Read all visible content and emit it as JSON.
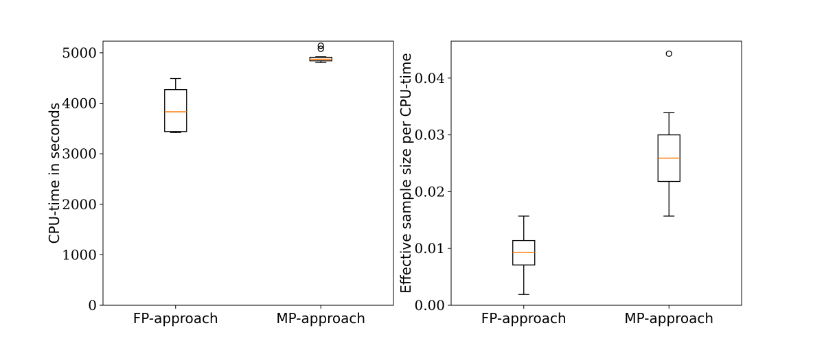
{
  "chart_data": [
    {
      "type": "box",
      "title": "",
      "xlabel": "",
      "ylabel": "CPU-time in seconds",
      "ylim": [
        0,
        5230
      ],
      "yticks": [
        0,
        1000,
        2000,
        3000,
        4000,
        5000
      ],
      "ytick_labels": [
        "0",
        "1000",
        "2000",
        "3000",
        "4000",
        "5000"
      ],
      "categories": [
        "FP-approach",
        "MP-approach"
      ],
      "boxes": [
        {
          "whisker_low": 3420,
          "q1": 3440,
          "median": 3830,
          "q3": 4270,
          "whisker_high": 4490,
          "outliers": []
        },
        {
          "whisker_low": 4810,
          "q1": 4840,
          "median": 4870,
          "q3": 4910,
          "whisker_high": 4920,
          "outliers": [
            5080,
            5140
          ]
        }
      ],
      "colors": {
        "box": "#000000",
        "median": "#ff7f0e"
      }
    },
    {
      "type": "box",
      "title": "",
      "xlabel": "",
      "ylabel": "Effective sample size per CPU-time",
      "ylim": [
        0,
        0.0465
      ],
      "yticks": [
        0,
        0.01,
        0.02,
        0.03,
        0.04
      ],
      "ytick_labels": [
        "0.00",
        "0.01",
        "0.02",
        "0.03",
        "0.04"
      ],
      "categories": [
        "FP-approach",
        "MP-approach"
      ],
      "boxes": [
        {
          "whisker_low": 0.0019,
          "q1": 0.0071,
          "median": 0.0093,
          "q3": 0.0114,
          "whisker_high": 0.0157,
          "outliers": []
        },
        {
          "whisker_low": 0.0157,
          "q1": 0.0218,
          "median": 0.0259,
          "q3": 0.03,
          "whisker_high": 0.0339,
          "outliers": [
            0.0443
          ]
        }
      ],
      "colors": {
        "box": "#000000",
        "median": "#ff7f0e"
      }
    }
  ]
}
